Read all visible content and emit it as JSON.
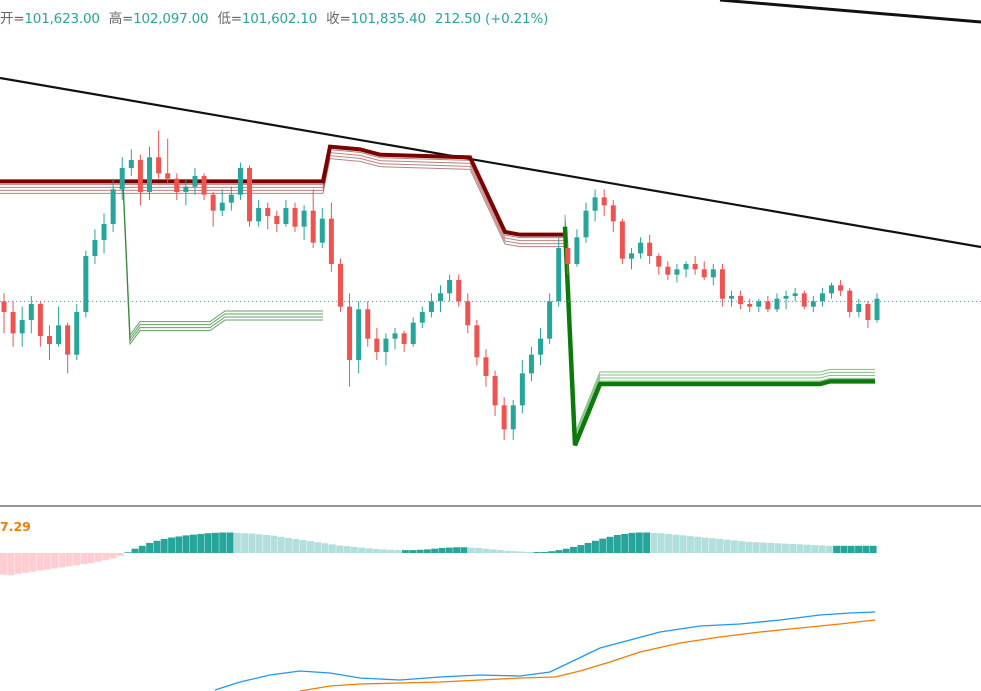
{
  "legend": {
    "open_label": "开=",
    "open": "101,623.00",
    "high_label": "高=",
    "high": "102,097.00",
    "low_label": "低=",
    "low": "101,602.10",
    "close_label": "收=",
    "close": "101,835.40",
    "change": "212.50 (+0.21%)"
  },
  "macd_label": "7.29",
  "colors": {
    "up": "#26a69a",
    "down": "#ef5350",
    "resistance": "#7b0000",
    "support": "#0b7a0b",
    "trendline": "#111111",
    "macd_line": "#2196f3",
    "signal_line": "#f57c00",
    "hist_up_strong": "#26a69a",
    "hist_up_weak": "#b2dfdb",
    "hist_down_weak": "#ffcdd2",
    "price_line": "#26a69a"
  },
  "chart_data": {
    "type": "candlestick",
    "description": "Price candles with resistance/support band indicator, two trend lines, MACD pane",
    "candles": [
      [
        101420,
        101450,
        101300,
        101380
      ],
      [
        101380,
        101420,
        101250,
        101300
      ],
      [
        101300,
        101400,
        101250,
        101350
      ],
      [
        101350,
        101440,
        101300,
        101410
      ],
      [
        101410,
        101420,
        101250,
        101290
      ],
      [
        101290,
        101330,
        101200,
        101260
      ],
      [
        101260,
        101400,
        101250,
        101330
      ],
      [
        101330,
        101340,
        101150,
        101220
      ],
      [
        101220,
        101410,
        101200,
        101380
      ],
      [
        101380,
        101610,
        101360,
        101590
      ],
      [
        101590,
        101690,
        101560,
        101650
      ],
      [
        101650,
        101750,
        101600,
        101710
      ],
      [
        101710,
        101880,
        101680,
        101840
      ],
      [
        101840,
        101960,
        101800,
        101920
      ],
      [
        101920,
        101990,
        101890,
        101950
      ],
      [
        101950,
        101970,
        101780,
        101830
      ],
      [
        101830,
        102000,
        101800,
        101960
      ],
      [
        101960,
        102060,
        101880,
        101900
      ],
      [
        101900,
        102030,
        101860,
        101880
      ],
      [
        101880,
        101900,
        101800,
        101830
      ],
      [
        101830,
        101880,
        101780,
        101850
      ],
      [
        101850,
        101920,
        101820,
        101890
      ],
      [
        101890,
        101900,
        101800,
        101820
      ],
      [
        101820,
        101830,
        101700,
        101760
      ],
      [
        101760,
        101840,
        101740,
        101790
      ],
      [
        101790,
        101850,
        101760,
        101820
      ],
      [
        101820,
        101940,
        101800,
        101920
      ],
      [
        101920,
        101930,
        101700,
        101720
      ],
      [
        101720,
        101800,
        101700,
        101770
      ],
      [
        101770,
        101790,
        101690,
        101740
      ],
      [
        101740,
        101760,
        101680,
        101710
      ],
      [
        101710,
        101800,
        101700,
        101770
      ],
      [
        101770,
        101790,
        101680,
        101700
      ],
      [
        101700,
        101780,
        101650,
        101760
      ],
      [
        101760,
        101840,
        101620,
        101640
      ],
      [
        101640,
        101770,
        101620,
        101730
      ],
      [
        101730,
        101790,
        101530,
        101560
      ],
      [
        101560,
        101580,
        101380,
        101400
      ],
      [
        101400,
        101450,
        101100,
        101200
      ],
      [
        101200,
        101420,
        101150,
        101390
      ],
      [
        101390,
        101420,
        101250,
        101280
      ],
      [
        101280,
        101320,
        101200,
        101230
      ],
      [
        101230,
        101300,
        101180,
        101280
      ],
      [
        101280,
        101320,
        101240,
        101300
      ],
      [
        101300,
        101310,
        101230,
        101260
      ],
      [
        101260,
        101360,
        101250,
        101340
      ],
      [
        101340,
        101400,
        101320,
        101380
      ],
      [
        101380,
        101450,
        101360,
        101420
      ],
      [
        101420,
        101480,
        101380,
        101450
      ],
      [
        101450,
        101520,
        101420,
        101500
      ],
      [
        101500,
        101520,
        101400,
        101420
      ],
      [
        101420,
        101450,
        101300,
        101330
      ],
      [
        101330,
        101350,
        101180,
        101210
      ],
      [
        101210,
        101240,
        101100,
        101140
      ],
      [
        101140,
        101160,
        100990,
        101030
      ],
      [
        101030,
        101060,
        100900,
        100940
      ],
      [
        100940,
        101050,
        100900,
        101030
      ],
      [
        101030,
        101200,
        101000,
        101150
      ],
      [
        101150,
        101250,
        101120,
        101220
      ],
      [
        101220,
        101320,
        101180,
        101280
      ],
      [
        101280,
        101450,
        101260,
        101420
      ],
      [
        101420,
        101660,
        101400,
        101620
      ],
      [
        101620,
        101640,
        101520,
        101560
      ],
      [
        101560,
        101690,
        101550,
        101660
      ],
      [
        101660,
        101790,
        101640,
        101760
      ],
      [
        101760,
        101840,
        101720,
        101810
      ],
      [
        101810,
        101840,
        101740,
        101780
      ],
      [
        101780,
        101800,
        101680,
        101720
      ],
      [
        101720,
        101730,
        101560,
        101580
      ],
      [
        101580,
        101620,
        101540,
        101600
      ],
      [
        101600,
        101660,
        101580,
        101640
      ],
      [
        101640,
        101670,
        101560,
        101590
      ],
      [
        101590,
        101600,
        101520,
        101550
      ],
      [
        101550,
        101570,
        101500,
        101520
      ],
      [
        101520,
        101560,
        101490,
        101540
      ],
      [
        101540,
        101570,
        101510,
        101560
      ],
      [
        101560,
        101590,
        101520,
        101540
      ],
      [
        101540,
        101570,
        101500,
        101510
      ],
      [
        101510,
        101560,
        101480,
        101540
      ],
      [
        101540,
        101560,
        101400,
        101430
      ],
      [
        101430,
        101460,
        101400,
        101440
      ],
      [
        101440,
        101460,
        101390,
        101410
      ],
      [
        101410,
        101430,
        101380,
        101400
      ],
      [
        101400,
        101430,
        101380,
        101420
      ],
      [
        101420,
        101440,
        101380,
        101390
      ],
      [
        101390,
        101450,
        101380,
        101430
      ],
      [
        101430,
        101460,
        101390,
        101440
      ],
      [
        101440,
        101470,
        101420,
        101450
      ],
      [
        101450,
        101460,
        101390,
        101400
      ],
      [
        101400,
        101440,
        101380,
        101420
      ],
      [
        101420,
        101470,
        101400,
        101450
      ],
      [
        101450,
        101490,
        101430,
        101480
      ],
      [
        101480,
        101500,
        101440,
        101460
      ],
      [
        101460,
        101470,
        101360,
        101380
      ],
      [
        101380,
        101430,
        101360,
        101410
      ],
      [
        101410,
        101420,
        101320,
        101350
      ],
      [
        101350,
        101450,
        101340,
        101430
      ]
    ],
    "price_scale": {
      "min": 100750,
      "max": 102400
    },
    "current_price": 101420,
    "resistance_band": [
      [
        0,
        101870
      ],
      [
        120,
        101870
      ],
      [
        121,
        101870
      ],
      [
        125,
        101870
      ],
      [
        323,
        101870
      ],
      [
        330,
        102000
      ],
      [
        360,
        101990
      ],
      [
        380,
        101970
      ],
      [
        470,
        101960
      ],
      [
        485,
        101840
      ],
      [
        505,
        101680
      ],
      [
        520,
        101670
      ],
      [
        565,
        101670
      ]
    ],
    "support_band": [
      [
        565,
        101700
      ],
      [
        575,
        100880
      ],
      [
        600,
        101110
      ],
      [
        820,
        101110
      ],
      [
        830,
        101120
      ],
      [
        875,
        101120
      ]
    ],
    "green_band_2": [
      [
        123,
        101850
      ],
      [
        130,
        101260
      ],
      [
        140,
        101310
      ],
      [
        210,
        101310
      ],
      [
        225,
        101350
      ],
      [
        323,
        101350
      ]
    ],
    "trendlines": [
      {
        "x1": 0,
        "y1": 78,
        "x2": 981,
        "y2": 247
      },
      {
        "x1": 720,
        "y1": 0,
        "x2": 981,
        "y2": 22
      }
    ],
    "macd_histogram": [
      -0.6,
      -0.62,
      -0.58,
      -0.55,
      -0.52,
      -0.49,
      -0.46,
      -0.43,
      -0.4,
      -0.37,
      -0.34,
      -0.31,
      -0.28,
      -0.24,
      -0.2,
      -0.15,
      -0.08,
      0.02,
      0.12,
      0.2,
      0.28,
      0.34,
      0.39,
      0.43,
      0.46,
      0.49,
      0.51,
      0.53,
      0.55,
      0.56,
      0.57,
      0.57,
      0.56,
      0.55,
      0.54,
      0.52,
      0.5,
      0.48,
      0.45,
      0.42,
      0.39,
      0.36,
      0.33,
      0.3,
      0.27,
      0.24,
      0.21,
      0.19,
      0.17,
      0.15,
      0.13,
      0.11,
      0.1,
      0.09,
      0.08,
      0.08,
      0.08,
      0.09,
      0.1,
      0.12,
      0.14,
      0.15,
      0.16,
      0.16,
      0.15,
      0.14,
      0.12,
      0.1,
      0.08,
      0.06,
      0.05,
      0.04,
      0.03,
      0.03,
      0.03,
      0.05,
      0.08,
      0.12,
      0.17,
      0.22,
      0.28,
      0.34,
      0.4,
      0.45,
      0.5,
      0.53,
      0.56,
      0.57,
      0.57,
      0.56,
      0.55,
      0.53,
      0.51,
      0.49,
      0.47,
      0.45,
      0.43,
      0.41,
      0.39,
      0.37,
      0.35,
      0.33,
      0.31,
      0.3,
      0.29,
      0.28,
      0.27,
      0.26,
      0.25,
      0.24,
      0.23,
      0.22,
      0.21,
      0.2,
      0.2,
      0.2,
      0.2,
      0.2,
      0.2,
      0.2
    ],
    "macd_line": [
      [
        215,
        690
      ],
      [
        240,
        682
      ],
      [
        270,
        675
      ],
      [
        300,
        671
      ],
      [
        330,
        673
      ],
      [
        360,
        678
      ],
      [
        400,
        680
      ],
      [
        440,
        677
      ],
      [
        480,
        675
      ],
      [
        520,
        676
      ],
      [
        550,
        672
      ],
      [
        575,
        660
      ],
      [
        600,
        648
      ],
      [
        630,
        640
      ],
      [
        660,
        632
      ],
      [
        700,
        626
      ],
      [
        740,
        624
      ],
      [
        780,
        620
      ],
      [
        820,
        615
      ],
      [
        850,
        613
      ],
      [
        875,
        612
      ]
    ],
    "signal_line": [
      [
        300,
        691
      ],
      [
        330,
        686
      ],
      [
        360,
        684
      ],
      [
        400,
        683
      ],
      [
        440,
        682
      ],
      [
        480,
        680
      ],
      [
        520,
        678
      ],
      [
        555,
        677
      ],
      [
        580,
        671
      ],
      [
        610,
        662
      ],
      [
        640,
        652
      ],
      [
        680,
        643
      ],
      [
        720,
        637
      ],
      [
        760,
        632
      ],
      [
        800,
        628
      ],
      [
        840,
        624
      ],
      [
        875,
        620
      ]
    ]
  }
}
